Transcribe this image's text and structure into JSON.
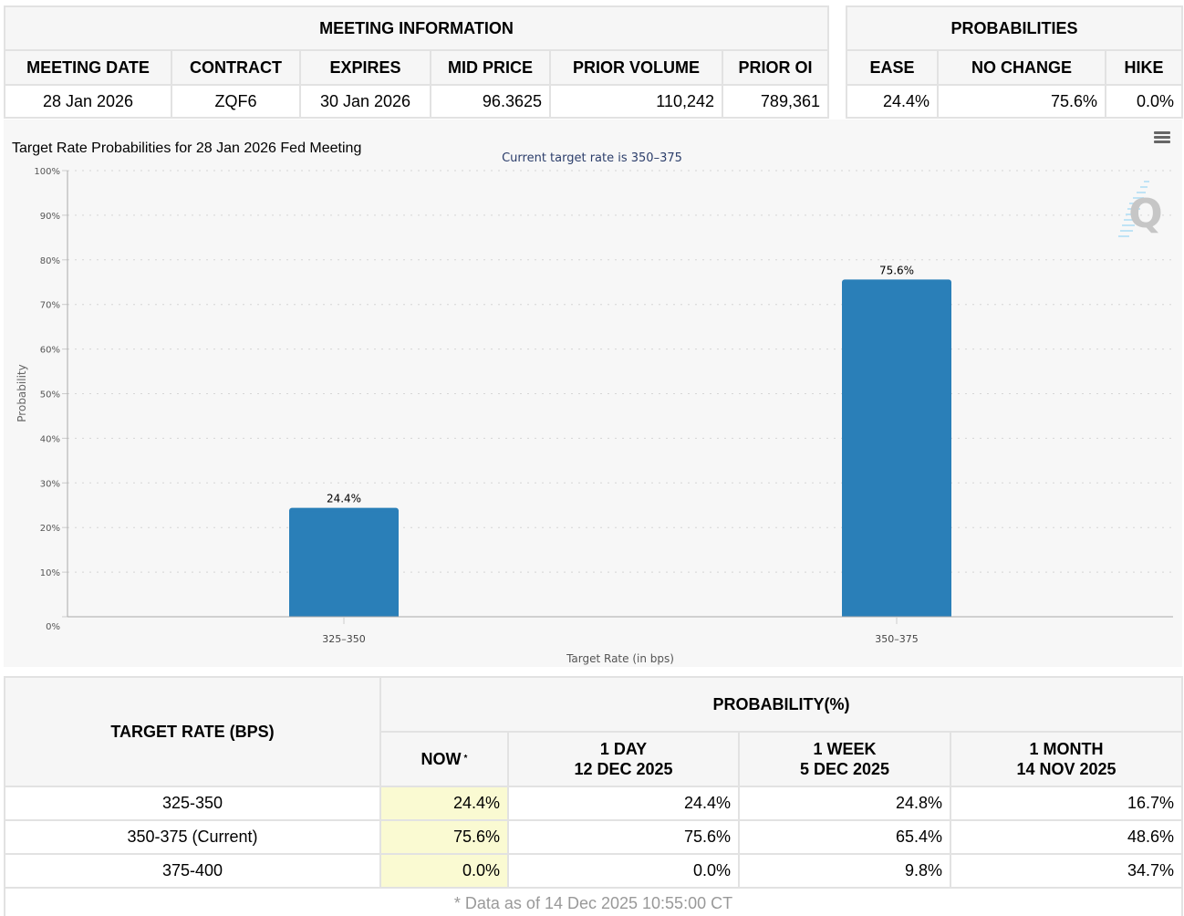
{
  "meeting_info": {
    "group_header": "MEETING INFORMATION",
    "columns": [
      "MEETING DATE",
      "CONTRACT",
      "EXPIRES",
      "MID PRICE",
      "PRIOR VOLUME",
      "PRIOR OI"
    ],
    "row": [
      "28 Jan 2026",
      "ZQF6",
      "30 Jan 2026",
      "96.3625",
      "110,242",
      "789,361"
    ]
  },
  "probabilities": {
    "group_header": "PROBABILITIES",
    "columns": [
      "EASE",
      "NO CHANGE",
      "HIKE"
    ],
    "row": [
      "24.4%",
      "75.6%",
      "0.0%"
    ]
  },
  "chart_menu_icon": "hamburger-menu-icon",
  "watermark_icon": "q-logo-icon",
  "chart_data": {
    "type": "bar",
    "title": "Target Rate Probabilities for 28 Jan 2026 Fed Meeting",
    "subtitle": "Current target rate is 350–375",
    "xlabel": "Target Rate (in bps)",
    "ylabel": "Probability",
    "categories": [
      "325–350",
      "350–375"
    ],
    "values": [
      24.4,
      75.6
    ],
    "data_labels": [
      "24.4%",
      "75.6%"
    ],
    "ylim": [
      0,
      100
    ],
    "yticks": [
      0,
      10,
      20,
      30,
      40,
      50,
      60,
      70,
      80,
      90,
      100
    ],
    "ytick_labels": [
      "0%",
      "10%",
      "20%",
      "30%",
      "40%",
      "50%",
      "60%",
      "70%",
      "80%",
      "90%",
      "100%"
    ],
    "grid": true,
    "bar_color": "#2a7fb8"
  },
  "forecast": {
    "rate_header": "TARGET RATE (BPS)",
    "prob_header": "PROBABILITY(%)",
    "columns": [
      {
        "line1": "NOW",
        "line2": "",
        "marker": "*"
      },
      {
        "line1": "1 DAY",
        "line2": "12 DEC 2025"
      },
      {
        "line1": "1 WEEK",
        "line2": "5 DEC 2025"
      },
      {
        "line1": "1 MONTH",
        "line2": "14 NOV 2025"
      }
    ],
    "rows": [
      {
        "rate": "325-350",
        "values": [
          "24.4%",
          "24.4%",
          "24.8%",
          "16.7%"
        ]
      },
      {
        "rate": "350-375 (Current)",
        "values": [
          "75.6%",
          "75.6%",
          "65.4%",
          "48.6%"
        ]
      },
      {
        "rate": "375-400",
        "values": [
          "0.0%",
          "0.0%",
          "9.8%",
          "34.7%"
        ]
      }
    ],
    "footnote": "* Data as of 14 Dec 2025 10:55:00 CT",
    "now_highlight_color": "#fafad2"
  }
}
